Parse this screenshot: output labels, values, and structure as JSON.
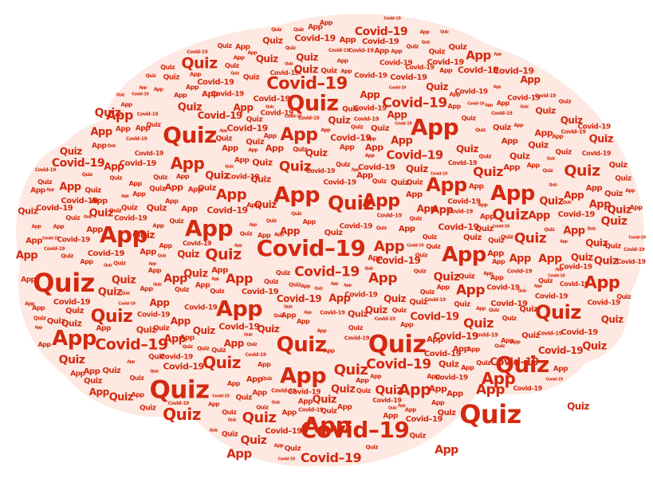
{
  "word_cloud": {
    "words": [
      "Covid–19",
      "Quiz",
      "App"
    ],
    "colors": {
      "text": "#d42a10",
      "shape_fill": "#fde9e2",
      "background": "#ffffff"
    }
  }
}
